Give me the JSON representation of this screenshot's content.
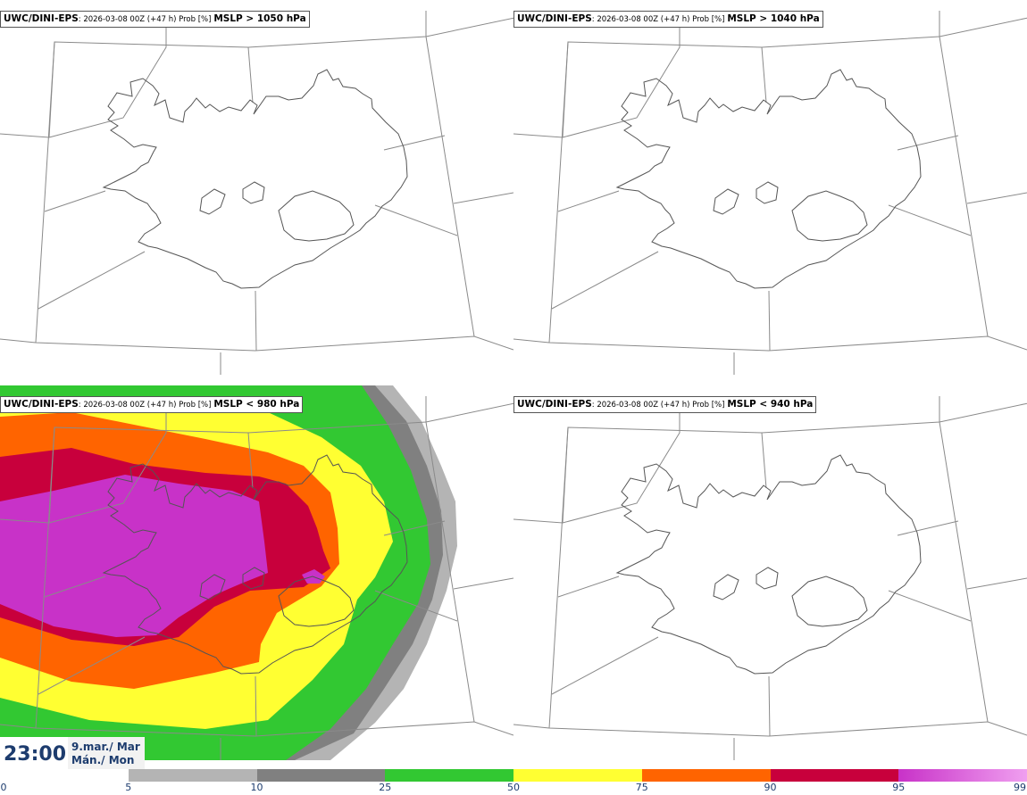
{
  "panels": [
    {
      "model": "UWC/DINI-EPS",
      "meta": ": 2026-03-08 00Z (+47 h) Prob [%]",
      "param": "MSLP > 1050 hPa",
      "filled": false
    },
    {
      "model": "UWC/DINI-EPS",
      "meta": ": 2026-03-08 00Z (+47 h) Prob [%]",
      "param": "MSLP > 1040 hPa",
      "filled": false
    },
    {
      "model": "UWC/DINI-EPS",
      "meta": ": 2026-03-08 00Z (+47 h) Prob [%]",
      "param": "MSLP < 980 hPa",
      "filled": true
    },
    {
      "model": "UWC/DINI-EPS",
      "meta": ": 2026-03-08 00Z (+47 h) Prob [%]",
      "param": "MSLP < 940 hPa",
      "filled": false
    }
  ],
  "timestamp": {
    "time": "23:00",
    "date_line1": "9.mar./ Mar",
    "date_line2": "Mán./ Mon"
  },
  "colorbar": {
    "ticks": [
      "0",
      "5",
      "10",
      "25",
      "50",
      "75",
      "90",
      "95",
      "99"
    ],
    "colors": [
      "#ffffff",
      "#b4b4b4",
      "#808080",
      "#32c832",
      "#ffff32",
      "#ff6400",
      "#c8003c",
      "#c832c8",
      "#f0a0f0"
    ]
  }
}
